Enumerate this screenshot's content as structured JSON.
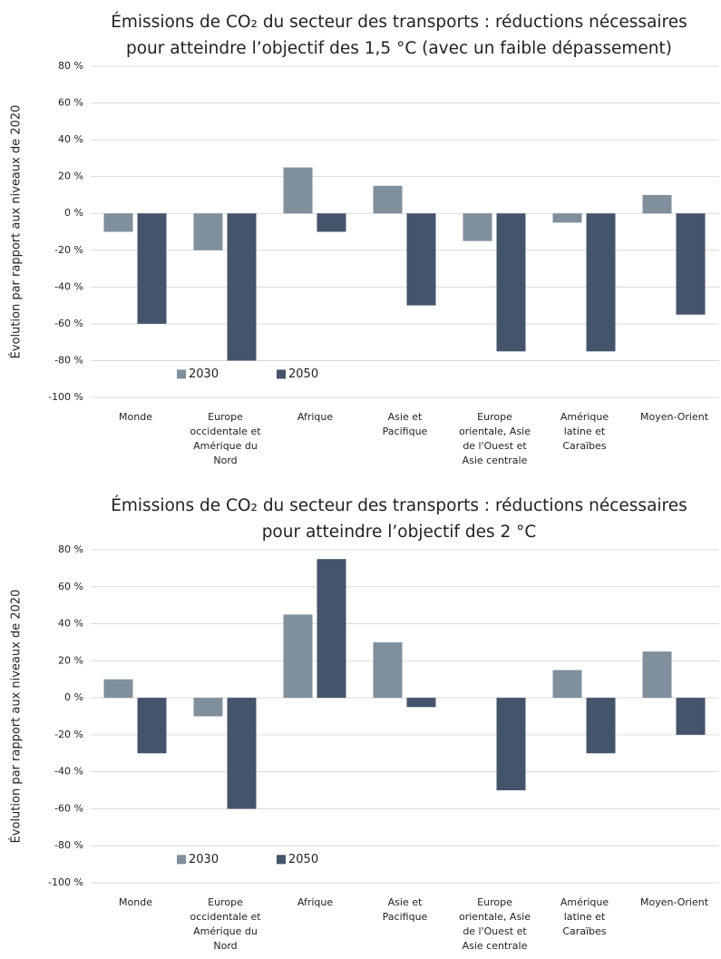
{
  "chart_data": [
    {
      "type": "bar",
      "title": [
        "Émissions de CO₂ du secteur des transports : réductions nécessaires",
        "pour atteindre l’objectif des 1,5 °C (avec un faible dépassement)"
      ],
      "ylabel": "Évolution par rapport aux niveaux de 2020",
      "categories": [
        [
          "Monde"
        ],
        [
          "Europe",
          "occidentale et",
          "Amérique du",
          "Nord"
        ],
        [
          "Afrique"
        ],
        [
          "Asie et",
          "Pacifique"
        ],
        [
          "Europe",
          "orientale, Asie",
          "de l'Ouest et",
          "Asie centrale"
        ],
        [
          "Amérique",
          "latine et",
          "Caraïbes"
        ],
        [
          "Moyen-Orient"
        ]
      ],
      "series": [
        {
          "name": "2030",
          "color": "#7f8f9c",
          "values": [
            -10,
            -20,
            25,
            15,
            -15,
            -5,
            10
          ]
        },
        {
          "name": "2050",
          "color": "#44546a",
          "values": [
            -60,
            -80,
            -10,
            -50,
            -75,
            -75,
            -55
          ]
        }
      ],
      "ylim": [
        -100,
        80
      ],
      "yticks": [
        {
          "value": 80,
          "label": "80 %"
        },
        {
          "value": 60,
          "label": "60 %"
        },
        {
          "value": 40,
          "label": "40 %"
        },
        {
          "value": 20,
          "label": "20 %"
        },
        {
          "value": 0,
          "label": "0 %"
        },
        {
          "value": -20,
          "label": "-20 %"
        },
        {
          "value": -40,
          "label": "-40 %"
        },
        {
          "value": -60,
          "label": "-60 %"
        },
        {
          "value": -80,
          "label": "-80 %"
        },
        {
          "value": -100,
          "label": "-100 %"
        }
      ],
      "grid": true,
      "legend": "lower left"
    },
    {
      "type": "bar",
      "title": [
        "Émissions de CO₂ du secteur des transports : réductions nécessaires",
        "pour atteindre l’objectif des 2 °C"
      ],
      "ylabel": "Évolution par rapport aux niveaux de 2020",
      "categories": [
        [
          "Monde"
        ],
        [
          "Europe",
          "occidentale et",
          "Amérique du",
          "Nord"
        ],
        [
          "Afrique"
        ],
        [
          "Asie et",
          "Pacifique"
        ],
        [
          "Europe",
          "orientale, Asie",
          "de l'Ouest et",
          "Asie centrale"
        ],
        [
          "Amérique",
          "latine et",
          "Caraïbes"
        ],
        [
          "Moyen-Orient"
        ]
      ],
      "series": [
        {
          "name": "2030",
          "color": "#7f8f9c",
          "values": [
            10,
            -10,
            45,
            30,
            0,
            15,
            25
          ]
        },
        {
          "name": "2050",
          "color": "#44546a",
          "values": [
            -30,
            -60,
            75,
            -5,
            -50,
            -30,
            -20
          ]
        }
      ],
      "ylim": [
        -100,
        80
      ],
      "yticks": [
        {
          "value": 80,
          "label": "80 %"
        },
        {
          "value": 60,
          "label": "60 %"
        },
        {
          "value": 40,
          "label": "40 %"
        },
        {
          "value": 20,
          "label": "20 %"
        },
        {
          "value": 0,
          "label": "0 %"
        },
        {
          "value": -20,
          "label": "-20 %"
        },
        {
          "value": -40,
          "label": "-40 %"
        },
        {
          "value": -60,
          "label": "-60 %"
        },
        {
          "value": -80,
          "label": "-80 %"
        },
        {
          "value": -100,
          "label": "-100 %"
        }
      ],
      "grid": true,
      "legend": "lower left"
    }
  ]
}
